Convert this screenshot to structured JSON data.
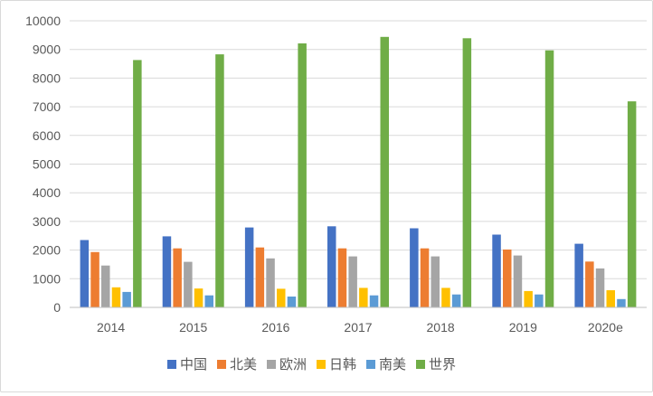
{
  "chart_data": {
    "type": "bar",
    "title": "",
    "xlabel": "",
    "ylabel": "",
    "categories": [
      "2014",
      "2015",
      "2016",
      "2017",
      "2018",
      "2019",
      "2020e"
    ],
    "ylim": [
      0,
      10000
    ],
    "yticks": [
      0,
      1000,
      2000,
      3000,
      4000,
      5000,
      6000,
      7000,
      8000,
      9000,
      10000
    ],
    "grid": "horizontal",
    "legend_position": "bottom",
    "series": [
      {
        "name": "中国",
        "color": "#4472C4",
        "values": [
          2350,
          2480,
          2790,
          2830,
          2760,
          2540,
          2220
        ]
      },
      {
        "name": "北美",
        "color": "#ED7D31",
        "values": [
          1930,
          2060,
          2090,
          2060,
          2060,
          2020,
          1600
        ]
      },
      {
        "name": "欧洲",
        "color": "#A5A5A5",
        "values": [
          1460,
          1590,
          1710,
          1780,
          1780,
          1810,
          1360
        ]
      },
      {
        "name": "日韩",
        "color": "#FFC000",
        "values": [
          700,
          660,
          650,
          680,
          680,
          570,
          600
        ]
      },
      {
        "name": "南美",
        "color": "#5B9BD5",
        "values": [
          540,
          420,
          380,
          420,
          450,
          450,
          290
        ]
      },
      {
        "name": "世界",
        "color": "#70AD47",
        "values": [
          8630,
          8830,
          9210,
          9440,
          9390,
          8970,
          7190
        ]
      }
    ]
  }
}
